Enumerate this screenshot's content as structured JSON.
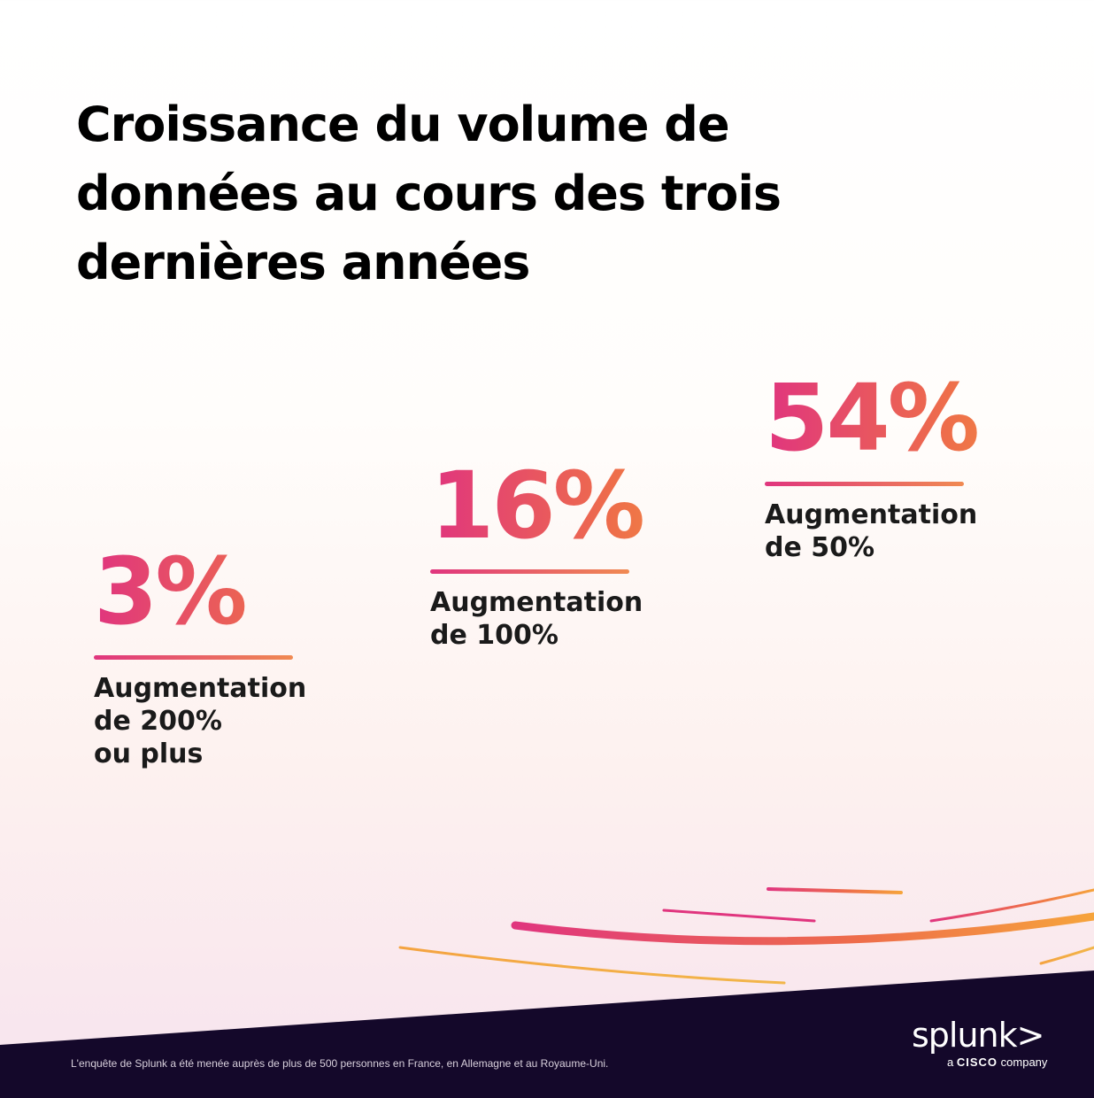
{
  "title": "Croissance du volume de données au cours des trois dernières années",
  "chart_data": {
    "type": "table",
    "title": "Croissance du volume de données au cours des trois dernières années",
    "categories": [
      "Augmentation de 200% ou plus",
      "Augmentation de 100%",
      "Augmentation de 50%"
    ],
    "values": [
      3,
      16,
      54
    ],
    "value_labels": [
      "3%",
      "16%",
      "54%"
    ],
    "unit": "%"
  },
  "stats": [
    {
      "value": "3%",
      "label": "Augmentation\nde 200%\nou plus"
    },
    {
      "value": "16%",
      "label": "Augmentation\nde 100%"
    },
    {
      "value": "54%",
      "label": "Augmentation\nde 50%"
    }
  ],
  "footnote": "L'enquête de Splunk a été menée auprès de plus de 500 personnes en France, en Allemagne et au Royaume-Uni.",
  "logo": {
    "wordmark": "splunk>",
    "tagline_prefix": "a",
    "tagline_brand": "CISCO",
    "tagline_suffix": "company"
  },
  "colors": {
    "gradient_start": "#e0357e",
    "gradient_mid": "#ee6e4a",
    "gradient_end": "#f6a43c",
    "footer_band": "#14082a"
  }
}
